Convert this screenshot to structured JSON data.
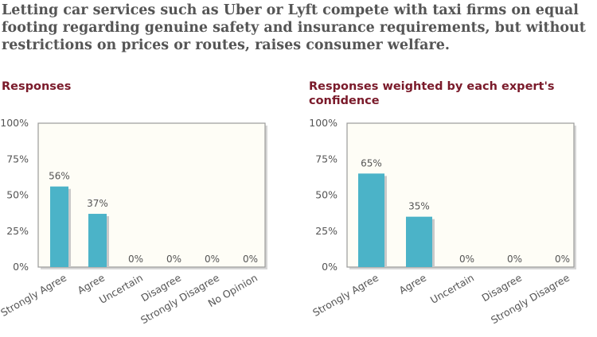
{
  "question": "Letting car services such as Uber or Lyft compete with taxi firms on equal footing regarding genuine safety and insurance requirements, but without restrictions on prices or routes, raises consumer welfare.",
  "colors": {
    "bar": "#4bb3c8",
    "bar_shadow": "#c9c9c9",
    "plot_bg": "#fefdf6",
    "title": "#7a1a2a",
    "question": "#555555"
  },
  "chart_data": [
    {
      "type": "bar",
      "title": "Responses",
      "categories": [
        "Strongly Agree",
        "Agree",
        "Uncertain",
        "Disagree",
        "Strongly Disagree",
        "No Opinion"
      ],
      "values": [
        56,
        37,
        0,
        0,
        0,
        0
      ],
      "value_labels": [
        "56%",
        "37%",
        "0%",
        "0%",
        "0%",
        "0%"
      ],
      "y_ticks": [
        "0%",
        "25%",
        "50%",
        "75%",
        "100%"
      ],
      "ylim": [
        0,
        100
      ],
      "grid": false,
      "xlabel": "",
      "ylabel": ""
    },
    {
      "type": "bar",
      "title": "Responses weighted by each expert's confidence",
      "categories": [
        "Strongly Agree",
        "Agree",
        "Uncertain",
        "Disagree",
        "Strongly Disagree"
      ],
      "values": [
        65,
        35,
        0,
        0,
        0
      ],
      "value_labels": [
        "65%",
        "35%",
        "0%",
        "0%",
        "0%"
      ],
      "y_ticks": [
        "0%",
        "25%",
        "50%",
        "75%",
        "100%"
      ],
      "ylim": [
        0,
        100
      ],
      "grid": false,
      "xlabel": "",
      "ylabel": ""
    }
  ]
}
